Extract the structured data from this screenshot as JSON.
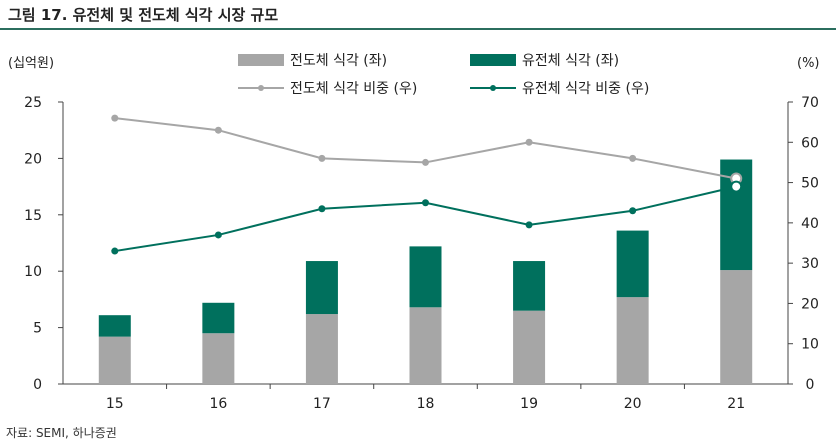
{
  "figure_title": "그림 17. 유전체 및 전도체 식각 시장 규모",
  "source": "자료: SEMI, 하나증권",
  "chart_data": {
    "type": "bar",
    "stacked": true,
    "categories": [
      "15",
      "16",
      "17",
      "18",
      "19",
      "20",
      "21"
    ],
    "y_left_unit": "(십억원)",
    "y_right_unit": "(%)",
    "y_left_range": [
      0,
      25
    ],
    "y_left_ticks": [
      "0",
      "5",
      "10",
      "15",
      "20",
      "25"
    ],
    "y_right_range": [
      0,
      70
    ],
    "y_right_ticks": [
      "0",
      "10",
      "20",
      "30",
      "40",
      "50",
      "60",
      "70"
    ],
    "grid": false,
    "legend_position": "top",
    "series": [
      {
        "name": "전도체 식각 (좌)",
        "type": "bar",
        "axis": "left",
        "color": "#a6a6a6",
        "values": [
          4.2,
          4.5,
          6.2,
          6.8,
          6.5,
          7.7,
          10.1
        ]
      },
      {
        "name": "유전체 식각 (좌)",
        "type": "bar",
        "axis": "left",
        "color": "#00705d",
        "values": [
          1.9,
          2.7,
          4.7,
          5.4,
          4.4,
          5.9,
          9.8
        ]
      },
      {
        "name": "전도체 식각 비중 (우)",
        "type": "line",
        "axis": "right",
        "color": "#a6a6a6",
        "values": [
          66,
          63,
          56,
          55,
          60,
          56,
          51
        ]
      },
      {
        "name": "유전체 식각 비중 (우)",
        "type": "line",
        "axis": "right",
        "color": "#00705d",
        "values": [
          33,
          37,
          43.5,
          45,
          39.5,
          43,
          49
        ]
      }
    ]
  }
}
